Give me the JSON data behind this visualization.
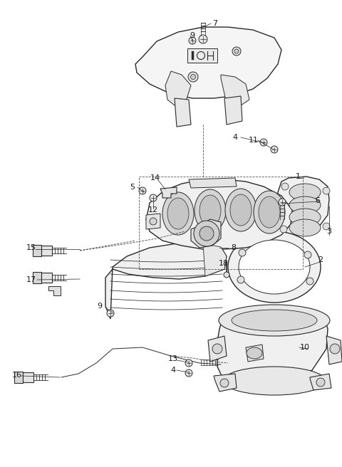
{
  "background_color": "#ffffff",
  "line_color": "#2a2a2a",
  "label_color": "#1a1a1a",
  "fig_width": 4.8,
  "fig_height": 6.56,
  "dpi": 100,
  "lw_main": 1.0,
  "lw_thin": 0.6,
  "fc_part": "#f2f2f2",
  "fc_dark": "#d8d8d8",
  "fc_mid": "#e8e8e8"
}
